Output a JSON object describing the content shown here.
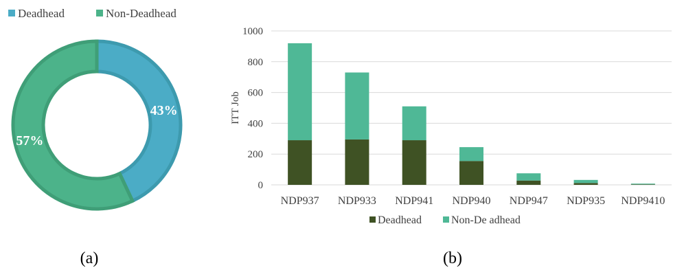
{
  "colors": {
    "deadhead": "#4bacc6",
    "deadhead_border": "#3d9aae",
    "non_deadhead_pie": "#4cb38a",
    "non_deadhead_pie_border": "#3f9e77",
    "deadhead_bar": "#3f5224",
    "non_deadhead_bar": "#4fb896",
    "grid": "#d9d9d9",
    "axis_text": "#404040"
  },
  "panel_a": {
    "caption": "(a)"
  },
  "panel_b": {
    "caption": "(b)"
  },
  "chart_data": [
    {
      "type": "pie",
      "variant": "donut",
      "labels": [
        "Deadhead",
        "Non-Deadhead"
      ],
      "values": [
        43,
        57
      ],
      "value_labels": [
        "43%",
        "57%"
      ],
      "legend_position": "top-left"
    },
    {
      "type": "bar",
      "stacked": true,
      "categories": [
        "NDP937",
        "NDP933",
        "NDP941",
        "NDP940",
        "NDP947",
        "NDP935",
        "NDP9410"
      ],
      "series": [
        {
          "name": "Deadhead",
          "values": [
            290,
            295,
            290,
            155,
            28,
            12,
            3
          ]
        },
        {
          "name": "Non-Deadhead",
          "values": [
            630,
            435,
            220,
            90,
            47,
            20,
            5
          ]
        }
      ],
      "ylabel": "ITT Job",
      "ylim": [
        0,
        1000
      ],
      "yticks": [
        "0",
        "200",
        "400",
        "600",
        "800",
        "1000"
      ],
      "grid": true,
      "legend_labels": [
        "Deadhead",
        "Non-De adhead"
      ],
      "legend_position": "bottom"
    }
  ]
}
